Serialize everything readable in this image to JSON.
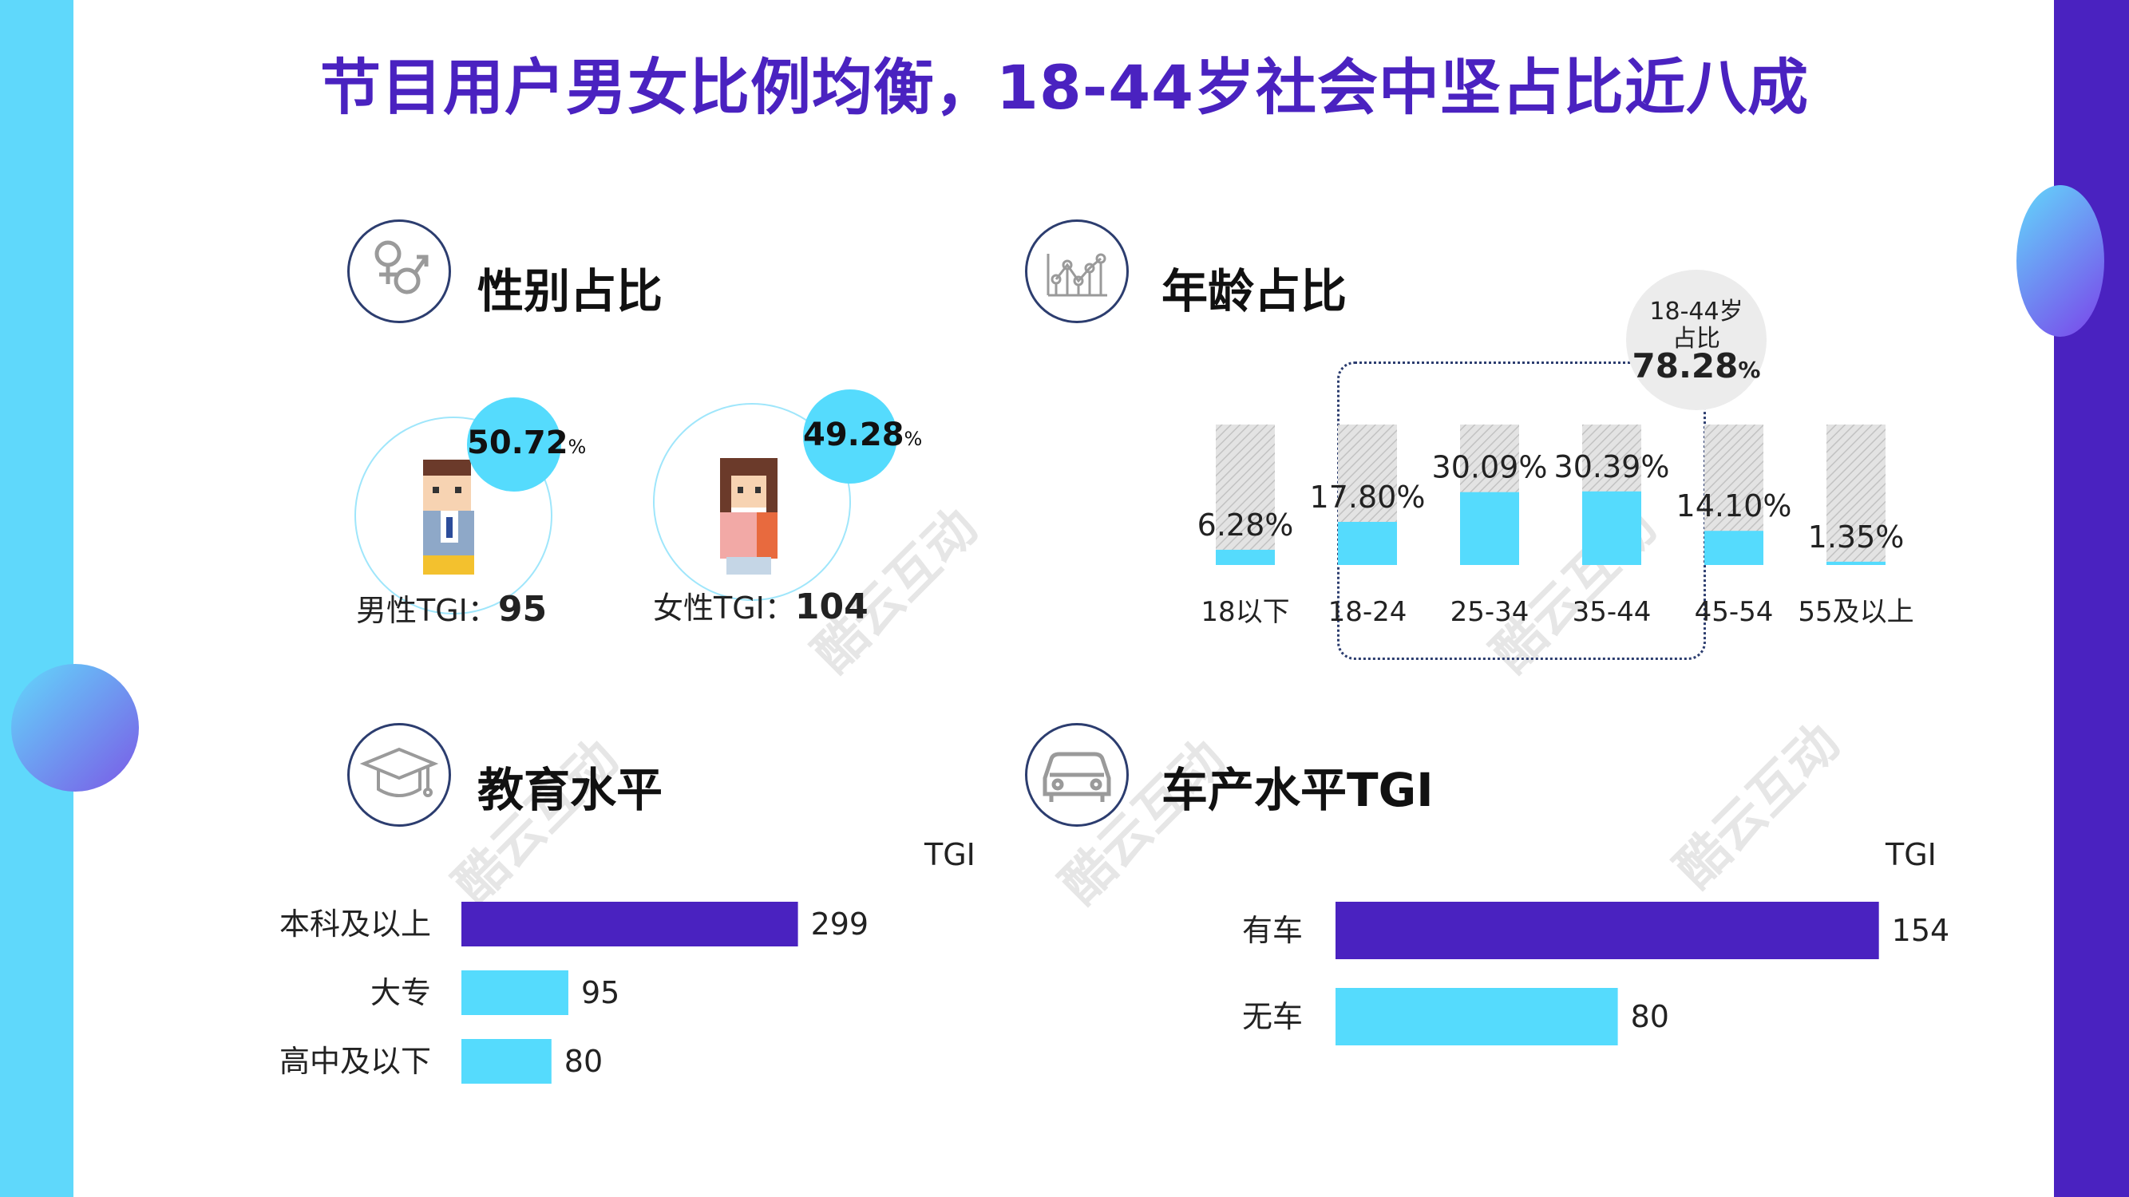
{
  "title": "节目用户男女比例均衡，18-44岁社会中坚占比近八成",
  "watermark": "酷云互动",
  "colors": {
    "primary": "#4a22c0",
    "accent": "#55dbfd",
    "track": "#d4d4d4"
  },
  "sections": {
    "gender": {
      "title": "性别占比",
      "icon": "gender-symbol-icon"
    },
    "age": {
      "title": "年龄占比",
      "icon": "line-chart-icon"
    },
    "education": {
      "title": "教育水平",
      "icon": "graduation-cap-icon"
    },
    "car": {
      "title": "车产水平TGI",
      "icon": "car-icon"
    }
  },
  "gender": {
    "male": {
      "pct": "50.72",
      "pct_unit": "%",
      "tgi_label": "男性TGI：",
      "tgi_value": "95"
    },
    "female": {
      "pct": "49.28",
      "pct_unit": "%",
      "tgi_label": "女性TGI：",
      "tgi_value": "104"
    }
  },
  "age_highlight": {
    "line1": "18-44岁",
    "line2": "占比",
    "value": "78.28",
    "unit": "%"
  },
  "education_tgi_header": "TGI",
  "car_tgi_header": "TGI",
  "chart_data": [
    {
      "type": "bar",
      "name": "age",
      "categories": [
        "18以下",
        "18-24",
        "25-34",
        "35-44",
        "45-54",
        "55及以上"
      ],
      "values": [
        6.28,
        17.8,
        30.09,
        30.39,
        14.1,
        1.35
      ],
      "labels": [
        "6.28%",
        "17.80%",
        "30.09%",
        "30.39%",
        "14.10%",
        "1.35%"
      ],
      "ylim": [
        0,
        100
      ],
      "highlight_categories": [
        "18-24",
        "25-34",
        "35-44"
      ]
    },
    {
      "type": "bar",
      "orientation": "horizontal",
      "name": "education",
      "categories": [
        "本科及以上",
        "大专",
        "高中及以下"
      ],
      "values": [
        299,
        95,
        80
      ],
      "value_header": "TGI"
    },
    {
      "type": "bar",
      "orientation": "horizontal",
      "name": "car",
      "categories": [
        "有车",
        "无车"
      ],
      "values": [
        154,
        80
      ],
      "value_header": "TGI"
    }
  ]
}
